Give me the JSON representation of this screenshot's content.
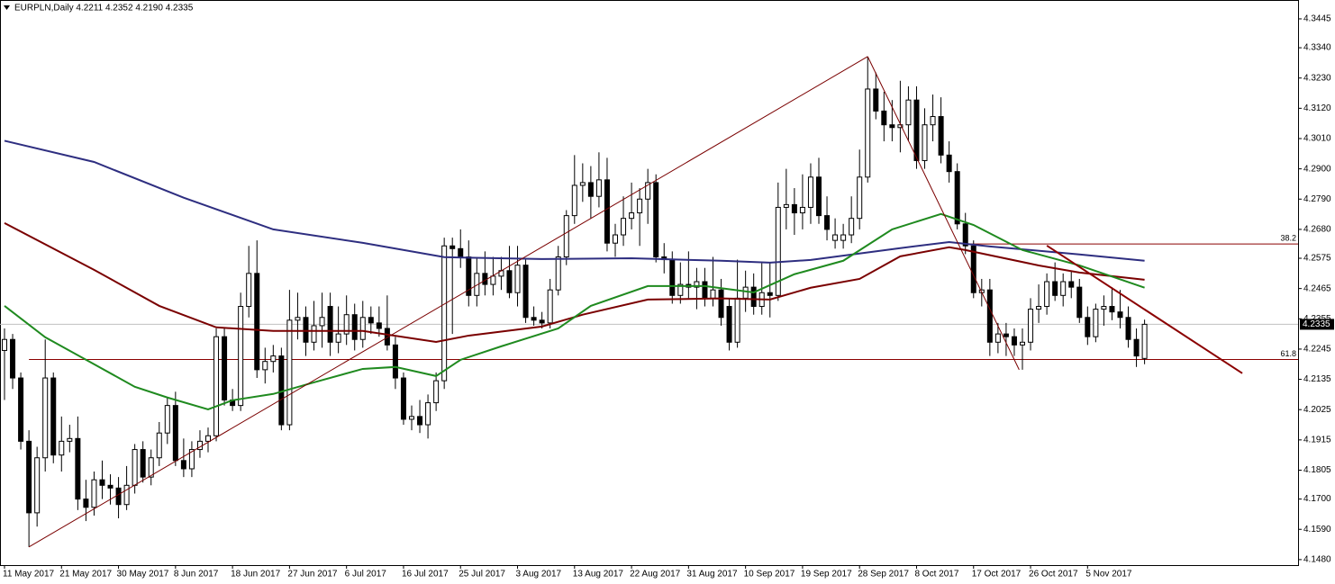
{
  "chart_data": {
    "type": "candlestick",
    "title": "EURPLN,Daily  4.2211 4.2352 4.2190 4.2335",
    "categories": [
      "11 May 2017",
      null,
      null,
      null,
      null,
      null,
      null,
      "21 May 2017",
      null,
      null,
      null,
      null,
      null,
      null,
      "30 May 2017",
      null,
      null,
      null,
      null,
      null,
      null,
      "8 Jun 2017",
      null,
      null,
      null,
      null,
      null,
      null,
      "18 Jun 2017",
      null,
      null,
      null,
      null,
      null,
      null,
      "27 Jun 2017",
      null,
      null,
      null,
      null,
      null,
      null,
      "6 Jul 2017",
      null,
      null,
      null,
      null,
      null,
      null,
      "16 Jul 2017",
      null,
      null,
      null,
      null,
      null,
      null,
      "25 Jul 2017",
      null,
      null,
      null,
      null,
      null,
      null,
      "3 Aug 2017",
      null,
      null,
      null,
      null,
      null,
      null,
      "13 Aug 2017",
      null,
      null,
      null,
      null,
      null,
      null,
      "22 Aug 2017",
      null,
      null,
      null,
      null,
      null,
      null,
      "31 Aug 2017",
      null,
      null,
      null,
      null,
      null,
      null,
      "10 Sep 2017",
      null,
      null,
      null,
      null,
      null,
      null,
      "19 Sep 2017",
      null,
      null,
      null,
      null,
      null,
      null,
      "28 Sep 2017",
      null,
      null,
      null,
      null,
      null,
      null,
      "8 Oct 2017",
      null,
      null,
      null,
      null,
      null,
      null,
      "17 Oct 2017",
      null,
      null,
      null,
      null,
      null,
      null,
      "26 Oct 2017",
      null,
      null,
      null,
      null,
      null,
      null,
      "5 Nov 2017",
      null,
      null,
      null,
      null,
      null,
      null,
      null
    ],
    "open": [
      4.224,
      4.228,
      4.214,
      4.191,
      4.165,
      4.185,
      4.214,
      4.186,
      4.191,
      4.192,
      4.17,
      4.167,
      4.177,
      4.175,
      4.174,
      4.168,
      4.175,
      4.188,
      4.178,
      4.185,
      4.194,
      4.204,
      4.184,
      4.181,
      4.188,
      4.191,
      4.193,
      4.229,
      4.206,
      4.204,
      4.24,
      4.252,
      4.217,
      4.22,
      4.222,
      4.197,
      4.235,
      4.236,
      4.227,
      4.233,
      4.24,
      4.227,
      4.23,
      4.237,
      4.228,
      4.236,
      4.234,
      4.232,
      4.226,
      4.214,
      4.199,
      4.2,
      4.197,
      4.205,
      4.213,
      4.262,
      4.261,
      4.258,
      4.244,
      4.252,
      4.248,
      4.251,
      4.253,
      4.245,
      4.255,
      4.236,
      4.235,
      4.234,
      4.246,
      4.258,
      4.273,
      4.284,
      4.285,
      4.28,
      4.286,
      4.263,
      4.266,
      4.272,
      4.274,
      4.279,
      4.285,
      4.258,
      4.257,
      4.244,
      4.248,
      4.247,
      4.249,
      4.243,
      4.246,
      4.24,
      4.227,
      4.243,
      4.247,
      4.24,
      4.245,
      4.244,
      4.276,
      4.277,
      4.274,
      4.276,
      4.287,
      4.273,
      4.264,
      4.264,
      4.266,
      4.272,
      4.287,
      4.319,
      4.311,
      4.306,
      4.305,
      4.306,
      4.315,
      4.293,
      4.306,
      4.309,
      4.295,
      4.289,
      4.27,
      4.262,
      4.245,
      4.246,
      4.227,
      4.23,
      4.229,
      4.226,
      4.227,
      4.239,
      4.24,
      4.249,
      4.244,
      4.249,
      4.247,
      4.236,
      4.229,
      4.239,
      4.24,
      4.238,
      4.236,
      4.228,
      4.2211
    ],
    "high": [
      4.232,
      4.23,
      4.216,
      4.195,
      4.189,
      4.228,
      4.216,
      4.2,
      4.197,
      4.2,
      4.177,
      4.18,
      4.184,
      4.179,
      4.178,
      4.182,
      4.19,
      4.191,
      4.188,
      4.198,
      4.207,
      4.209,
      4.192,
      4.191,
      4.195,
      4.196,
      4.232,
      4.232,
      4.21,
      4.245,
      4.262,
      4.264,
      4.225,
      4.226,
      4.225,
      4.246,
      4.245,
      4.24,
      4.242,
      4.245,
      4.245,
      4.24,
      4.244,
      4.241,
      4.242,
      4.24,
      4.24,
      4.244,
      4.229,
      4.216,
      4.204,
      4.206,
      4.208,
      4.216,
      4.265,
      4.265,
      4.268,
      4.264,
      4.258,
      4.26,
      4.258,
      4.258,
      4.262,
      4.262,
      4.257,
      4.24,
      4.238,
      4.25,
      4.262,
      4.275,
      4.295,
      4.292,
      4.291,
      4.296,
      4.294,
      4.27,
      4.28,
      4.285,
      4.283,
      4.29,
      4.288,
      4.263,
      4.26,
      4.256,
      4.26,
      4.254,
      4.254,
      4.258,
      4.25,
      4.243,
      4.257,
      4.253,
      4.252,
      4.256,
      4.256,
      4.285,
      4.29,
      4.283,
      4.288,
      4.292,
      4.294,
      4.28,
      4.272,
      4.27,
      4.28,
      4.297,
      4.3308,
      4.325,
      4.318,
      4.315,
      4.322,
      4.32,
      4.32,
      4.312,
      4.317,
      4.316,
      4.3,
      4.292,
      4.274,
      4.264,
      4.25,
      4.25,
      4.234,
      4.234,
      4.232,
      4.232,
      4.243,
      4.248,
      4.252,
      4.256,
      4.252,
      4.253,
      4.25,
      4.24,
      4.241,
      4.244,
      4.247,
      4.246,
      4.24,
      4.232,
      4.2352
    ],
    "low": [
      4.206,
      4.21,
      4.188,
      4.1526,
      4.16,
      4.18,
      4.183,
      4.18,
      4.187,
      4.166,
      4.162,
      4.164,
      4.17,
      4.168,
      4.163,
      4.166,
      4.172,
      4.176,
      4.175,
      4.182,
      4.19,
      4.182,
      4.178,
      4.178,
      4.185,
      4.187,
      4.191,
      4.204,
      4.202,
      4.202,
      4.236,
      4.214,
      4.212,
      4.216,
      4.195,
      4.195,
      4.228,
      4.222,
      4.224,
      4.225,
      4.222,
      4.223,
      4.226,
      4.224,
      4.225,
      4.23,
      4.229,
      4.224,
      4.21,
      4.197,
      4.195,
      4.194,
      4.192,
      4.202,
      4.21,
      4.23,
      4.254,
      4.24,
      4.24,
      4.244,
      4.244,
      4.246,
      4.243,
      4.24,
      4.234,
      4.233,
      4.232,
      4.232,
      4.244,
      4.255,
      4.27,
      4.278,
      4.272,
      4.276,
      4.26,
      4.258,
      4.262,
      4.268,
      4.262,
      4.27,
      4.256,
      4.252,
      4.241,
      4.241,
      4.243,
      4.239,
      4.24,
      4.24,
      4.233,
      4.224,
      4.225,
      4.238,
      4.237,
      4.237,
      4.236,
      4.242,
      4.268,
      4.266,
      4.268,
      4.27,
      4.27,
      4.264,
      4.261,
      4.261,
      4.263,
      4.268,
      4.285,
      4.308,
      4.3,
      4.3,
      4.296,
      4.3,
      4.29,
      4.29,
      4.3,
      4.292,
      4.285,
      4.268,
      4.259,
      4.243,
      4.24,
      4.222,
      4.223,
      4.222,
      4.222,
      4.217,
      4.224,
      4.234,
      4.237,
      4.242,
      4.24,
      4.243,
      4.234,
      4.226,
      4.227,
      4.233,
      4.235,
      4.232,
      4.225,
      4.218,
      4.219
    ],
    "close": [
      4.228,
      4.214,
      4.191,
      4.165,
      4.185,
      4.214,
      4.186,
      4.191,
      4.192,
      4.17,
      4.167,
      4.177,
      4.175,
      4.174,
      4.168,
      4.175,
      4.188,
      4.178,
      4.185,
      4.194,
      4.204,
      4.184,
      4.181,
      4.188,
      4.191,
      4.193,
      4.229,
      4.206,
      4.204,
      4.24,
      4.252,
      4.217,
      4.22,
      4.222,
      4.197,
      4.235,
      4.236,
      4.227,
      4.233,
      4.236,
      4.227,
      4.23,
      4.237,
      4.228,
      4.236,
      4.234,
      4.232,
      4.226,
      4.214,
      4.199,
      4.2,
      4.197,
      4.205,
      4.213,
      4.262,
      4.261,
      4.258,
      4.244,
      4.252,
      4.248,
      4.251,
      4.253,
      4.245,
      4.255,
      4.236,
      4.235,
      4.234,
      4.246,
      4.258,
      4.273,
      4.284,
      4.285,
      4.28,
      4.286,
      4.263,
      4.266,
      4.272,
      4.274,
      4.279,
      4.285,
      4.258,
      4.257,
      4.244,
      4.248,
      4.247,
      4.249,
      4.243,
      4.246,
      4.236,
      4.227,
      4.243,
      4.247,
      4.24,
      4.245,
      4.244,
      4.276,
      4.277,
      4.274,
      4.276,
      4.287,
      4.273,
      4.268,
      4.266,
      4.266,
      4.272,
      4.287,
      4.319,
      4.311,
      4.306,
      4.305,
      4.306,
      4.315,
      4.293,
      4.306,
      4.309,
      4.295,
      4.289,
      4.27,
      4.262,
      4.245,
      4.246,
      4.227,
      4.23,
      4.229,
      4.226,
      4.227,
      4.239,
      4.24,
      4.249,
      4.244,
      4.249,
      4.247,
      4.236,
      4.229,
      4.239,
      4.24,
      4.238,
      4.236,
      4.228,
      4.222,
      4.2335
    ],
    "up_color": "#ffffff",
    "down_color": "#000000",
    "series": [
      {
        "color": "#2e2e80",
        "x": [
          0,
          11,
          22,
          33,
          44,
          54,
          66,
          77,
          88,
          94,
          99,
          110,
          116,
          121,
          132,
          140
        ],
        "values": [
          4.3002,
          4.2925,
          4.2795,
          4.268,
          4.2631,
          4.2579,
          4.2572,
          4.2575,
          4.2566,
          4.2559,
          4.2569,
          4.2612,
          4.2634,
          4.2618,
          4.2589,
          4.2566
        ]
      },
      {
        "color": "#7a0000",
        "x": [
          0,
          11,
          19,
          26,
          33,
          44,
          53,
          57,
          66,
          71,
          79,
          88,
          94,
          99,
          105,
          110,
          116,
          118,
          127,
          132,
          140
        ],
        "values": [
          4.2703,
          4.2533,
          4.2402,
          4.2324,
          4.2311,
          4.2311,
          4.2271,
          4.2294,
          4.2327,
          4.237,
          4.2425,
          4.2429,
          4.2425,
          4.2468,
          4.25,
          4.2582,
          4.2615,
          4.2605,
          4.2549,
          4.2523,
          4.2497
        ]
      },
      {
        "color": "#1f8a1f",
        "x": [
          0,
          5,
          11,
          16,
          20,
          25,
          28,
          33,
          38,
          44,
          48,
          53,
          56,
          61,
          68,
          72,
          79,
          86,
          92,
          97,
          103,
          109,
          115,
          119,
          125,
          132,
          140
        ],
        "values": [
          4.2402,
          4.2288,
          4.219,
          4.2108,
          4.2069,
          4.2026,
          4.2059,
          4.2082,
          4.2124,
          4.2173,
          4.218,
          4.2147,
          4.2206,
          4.2255,
          4.232,
          4.2402,
          4.2474,
          4.2474,
          4.2451,
          4.2517,
          4.2566,
          4.268,
          4.2736,
          4.2696,
          4.2605,
          4.2549,
          4.2468
        ]
      }
    ],
    "trendlines": [
      {
        "color": "#7a0000",
        "x": [
          3,
          106
        ],
        "y": [
          4.1526,
          4.3308
        ]
      },
      {
        "color": "#7a0000",
        "x": [
          106,
          124.6
        ],
        "y": [
          4.3308,
          4.217
        ]
      },
      {
        "color": "#8b0000",
        "x": [
          128,
          152
        ],
        "y": [
          4.2621,
          4.2157
        ]
      }
    ],
    "fib_levels": [
      {
        "value": 4.2627,
        "label": "38.2",
        "start": 118
      },
      {
        "value": 4.2207,
        "label": "61.8",
        "start": 3
      }
    ],
    "fib_color": "#8b0000",
    "last_price": 4.2335,
    "ylim": [
      4.146,
      4.3507
    ],
    "yticks": [
      4.3445,
      {
        "value": 4.334,
        "label": "4.3340"
      },
      {
        "value": 4.323,
        "label": "4.3230"
      },
      {
        "value": 4.312,
        "label": "4.3120"
      },
      {
        "value": 4.301,
        "label": "4.3010"
      },
      {
        "value": 4.29,
        "label": "4.2900"
      },
      {
        "value": 4.279,
        "label": "4.2790"
      },
      {
        "value": 4.268,
        "label": "4.2680"
      },
      4.2575,
      4.2465,
      4.2355,
      4.2245,
      4.2135,
      4.2025,
      4.1915,
      4.1805,
      {
        "value": 4.17,
        "label": "4.1700"
      },
      {
        "value": 4.159,
        "label": "4.1590"
      },
      {
        "value": 4.148,
        "label": "4.1480"
      }
    ],
    "grid": false
  }
}
